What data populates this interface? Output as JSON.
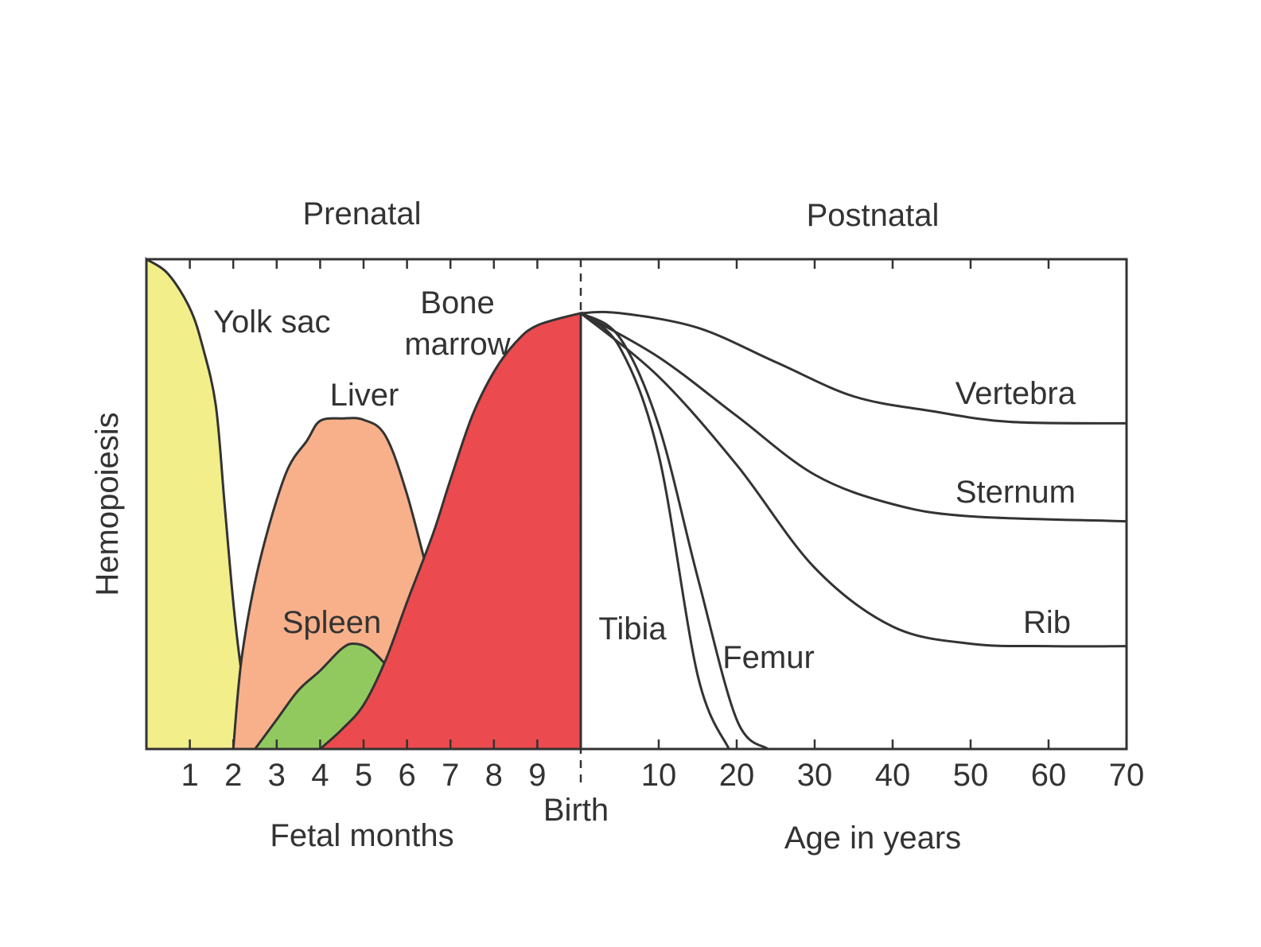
{
  "chart_data": {
    "type": "area",
    "title": "",
    "ylabel": "Hemopoiesis",
    "regions": [
      {
        "name": "Prenatal",
        "xlabel": "Fetal months"
      },
      {
        "name": "Postnatal",
        "xlabel": "Age in years"
      }
    ],
    "birth_label": "Birth",
    "prenatal_ticks": [
      "1",
      "2",
      "3",
      "4",
      "5",
      "6",
      "7",
      "8",
      "9"
    ],
    "postnatal_ticks": [
      "10",
      "20",
      "30",
      "40",
      "50",
      "60",
      "70"
    ],
    "prenatal_series": [
      {
        "name": "Yolk sac",
        "color": "#f2ee8a",
        "points": [
          [
            0,
            1.0
          ],
          [
            0.5,
            0.97
          ],
          [
            1.0,
            0.9
          ],
          [
            1.3,
            0.82
          ],
          [
            1.6,
            0.7
          ],
          [
            1.8,
            0.5
          ],
          [
            2.0,
            0.3
          ],
          [
            2.2,
            0.15
          ],
          [
            2.5,
            0.0
          ]
        ]
      },
      {
        "name": "Liver",
        "color": "#f8b08a",
        "points": [
          [
            2.0,
            0.0
          ],
          [
            2.2,
            0.19
          ],
          [
            2.6,
            0.38
          ],
          [
            3.2,
            0.56
          ],
          [
            3.7,
            0.63
          ],
          [
            4.0,
            0.67
          ],
          [
            4.5,
            0.675
          ],
          [
            5.0,
            0.672
          ],
          [
            5.5,
            0.64
          ],
          [
            6.0,
            0.52
          ],
          [
            6.6,
            0.32
          ],
          [
            7.0,
            0.22
          ],
          [
            7.5,
            0.13
          ],
          [
            8.0,
            0.07
          ],
          [
            8.5,
            0.03
          ],
          [
            9.0,
            0.008
          ],
          [
            10.0,
            0.0
          ]
        ]
      },
      {
        "name": "Spleen",
        "color": "#92c95f",
        "points": [
          [
            2.5,
            0.0
          ],
          [
            3.0,
            0.06
          ],
          [
            3.5,
            0.12
          ],
          [
            4.0,
            0.16
          ],
          [
            4.5,
            0.205
          ],
          [
            4.8,
            0.215
          ],
          [
            5.2,
            0.2
          ],
          [
            5.8,
            0.14
          ],
          [
            6.2,
            0.07
          ],
          [
            6.6,
            0.0
          ]
        ]
      },
      {
        "name": "Bone\nmarrow",
        "color": "#eb4b4e",
        "points": [
          [
            4.0,
            0.0
          ],
          [
            4.5,
            0.04
          ],
          [
            5.0,
            0.09
          ],
          [
            5.5,
            0.18
          ],
          [
            6.0,
            0.3
          ],
          [
            6.6,
            0.44
          ],
          [
            7.0,
            0.55
          ],
          [
            7.5,
            0.68
          ],
          [
            8.0,
            0.77
          ],
          [
            8.5,
            0.83
          ],
          [
            9.0,
            0.865
          ],
          [
            10.0,
            0.89
          ]
        ]
      }
    ],
    "postnatal_series": [
      {
        "name": "Vertebra",
        "points": [
          [
            0,
            0.89
          ],
          [
            5,
            0.89
          ],
          [
            15,
            0.86
          ],
          [
            25,
            0.79
          ],
          [
            35,
            0.72
          ],
          [
            45,
            0.69
          ],
          [
            55,
            0.668
          ],
          [
            70,
            0.665
          ]
        ]
      },
      {
        "name": "Sternum",
        "points": [
          [
            0,
            0.89
          ],
          [
            10,
            0.8
          ],
          [
            20,
            0.68
          ],
          [
            30,
            0.56
          ],
          [
            40,
            0.5
          ],
          [
            50,
            0.475
          ],
          [
            70,
            0.465
          ]
        ]
      },
      {
        "name": "Rib",
        "points": [
          [
            0,
            0.89
          ],
          [
            10,
            0.76
          ],
          [
            20,
            0.58
          ],
          [
            30,
            0.37
          ],
          [
            40,
            0.25
          ],
          [
            50,
            0.215
          ],
          [
            60,
            0.21
          ],
          [
            70,
            0.21
          ]
        ]
      },
      {
        "name": "Tibia",
        "points": [
          [
            0,
            0.89
          ],
          [
            5,
            0.82
          ],
          [
            10,
            0.6
          ],
          [
            15,
            0.15
          ],
          [
            19,
            0.0
          ]
        ]
      },
      {
        "name": "Femur",
        "points": [
          [
            0,
            0.89
          ],
          [
            5,
            0.84
          ],
          [
            10,
            0.66
          ],
          [
            15,
            0.35
          ],
          [
            20,
            0.06
          ],
          [
            24,
            0.0
          ]
        ]
      }
    ],
    "xlim_prenatal": [
      0,
      10
    ],
    "xlim_postnatal": [
      0,
      70
    ],
    "ylim": [
      0,
      1
    ],
    "grid": false,
    "legend": "none"
  }
}
